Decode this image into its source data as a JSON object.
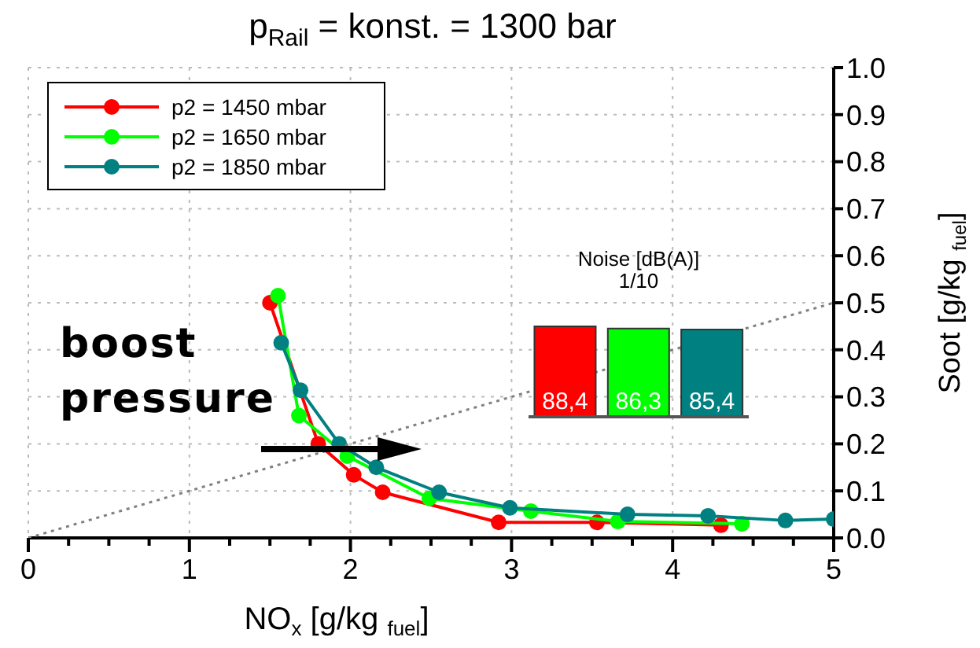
{
  "chart_data": [
    {
      "type": "line",
      "title": "p$_{Rail}$ = konst. = 1300 bar",
      "xlabel": "NO$_{x}$  [g/kg $_{fuel}$]",
      "ylabel": "Soot [g/kg $_{fuel}$]",
      "xlim": [
        0,
        5
      ],
      "xticks": [
        0,
        {
          "value": 0.25,
          "label": null
        },
        {
          "value": 0.5,
          "label": null
        },
        {
          "value": 0.75,
          "label": null
        },
        1,
        {
          "value": 1.25,
          "label": null
        },
        {
          "value": 1.5,
          "label": null
        },
        {
          "value": 1.75,
          "label": null
        },
        2,
        {
          "value": 2.25,
          "label": null
        },
        {
          "value": 2.5,
          "label": null
        },
        {
          "value": 2.75,
          "label": null
        },
        3,
        {
          "value": 3.25,
          "label": null
        },
        {
          "value": 3.5,
          "label": null
        },
        {
          "value": 3.75,
          "label": null
        },
        4,
        {
          "value": 4.25,
          "label": null
        },
        {
          "value": 4.5,
          "label": null
        },
        {
          "value": 4.75,
          "label": null
        },
        5
      ],
      "ylim": [
        0,
        1
      ],
      "yticks": [
        {
          "value": 0,
          "label": "0.0"
        },
        0.1,
        0.2,
        0.3,
        0.4,
        0.5,
        0.6,
        0.7,
        0.8,
        0.9,
        {
          "value": 1,
          "label": "1.0"
        }
      ],
      "grid": true,
      "legend": "top left",
      "marker": "circle",
      "annotations": [
        "boost pressure"
      ],
      "series": [
        {
          "name": "p2 = 1450 mbar",
          "color": "#ff0000",
          "x": [
            1.5,
            1.8,
            2.02,
            2.2,
            2.92,
            3.53,
            4.3
          ],
          "values": [
            0.5,
            0.2,
            0.134,
            0.097,
            0.033,
            0.033,
            0.027
          ]
        },
        {
          "name": "p2 = 1650 mbar",
          "color": "#00ff00",
          "x": [
            1.55,
            1.68,
            1.98,
            2.49,
            3.12,
            3.66,
            4.43
          ],
          "values": [
            0.515,
            0.26,
            0.174,
            0.084,
            0.057,
            0.035,
            0.03
          ]
        },
        {
          "name": "p2 = 1850 mbar",
          "color": "#008080",
          "x": [
            1.57,
            1.69,
            1.93,
            2.16,
            2.55,
            2.99,
            3.72,
            4.22,
            4.7,
            5
          ],
          "values": [
            0.415,
            0.314,
            0.2,
            0.15,
            0.097,
            0.064,
            0.05,
            0.047,
            0.037,
            0.04
          ]
        },
        {
          "type": "line",
          "color": "#808080",
          "line_style": "dotted",
          "marker": "none",
          "x": [
            0,
            5
          ],
          "values": [
            0,
            0.5
          ]
        }
      ]
    },
    {
      "type": "bar",
      "title": "Noise [dB(A)]\n1/10",
      "categories": [
        null,
        null,
        null
      ],
      "values": [
        88.4,
        86.3,
        85.4
      ],
      "colors": [
        "#ff0000",
        "#00ff00",
        "#008080"
      ],
      "value_labels": [
        "88,4",
        "86,3",
        "85,4"
      ]
    }
  ]
}
